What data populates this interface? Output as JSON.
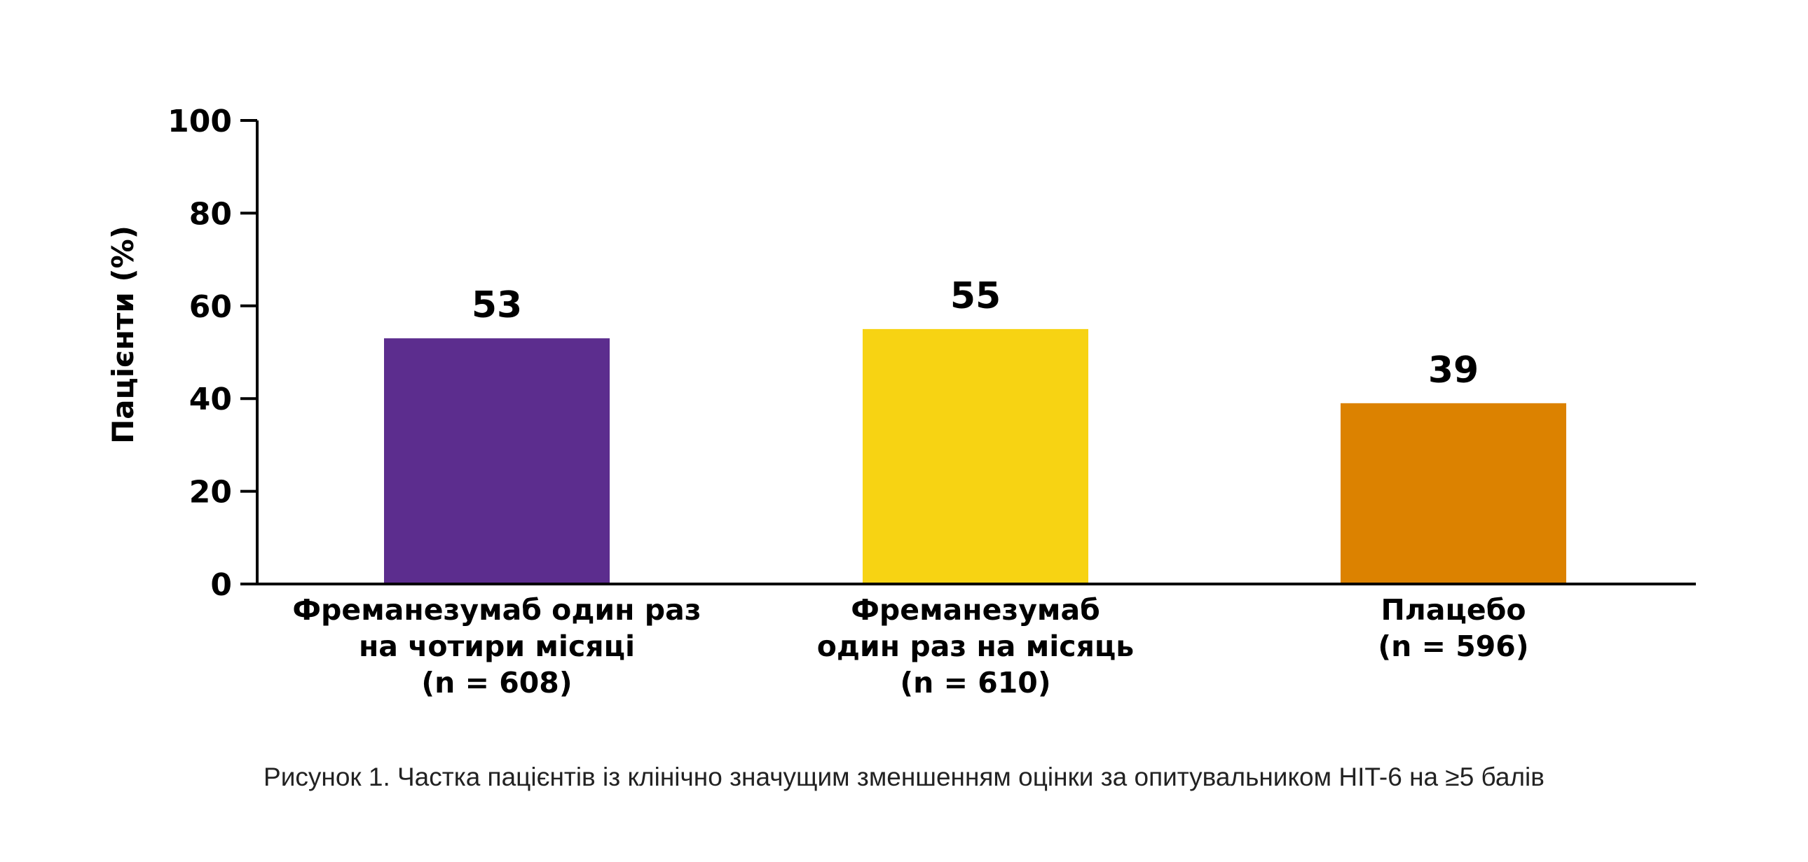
{
  "colors": {
    "axis": "#000000",
    "text": "#000000",
    "caption": "#222222"
  },
  "chart_data": {
    "type": "bar",
    "ylabel": "Пацієнти (%)",
    "ylim": [
      0,
      100
    ],
    "yticks": [
      "0",
      "20",
      "40",
      "60",
      "80",
      "100"
    ],
    "grid": false,
    "caption": "Рисунок 1. Частка пацієнтів із клінічно значущим зменшенням оцінки за опитувальником HIT-6 на ≥5 балів",
    "categories": [
      [
        "Фреманезумаб один раз",
        "на чотири місяці",
        "(n = 608)"
      ],
      [
        "Фреманезумаб",
        "один раз на місяць",
        "(n = 610)"
      ],
      [
        "Плацебо",
        "(n = 596)"
      ]
    ],
    "values": [
      53,
      55,
      39
    ],
    "value_labels": [
      "53",
      "55",
      "39"
    ],
    "bar_colors": [
      "#5c2d8e",
      "#f7d313",
      "#dc8200"
    ]
  }
}
